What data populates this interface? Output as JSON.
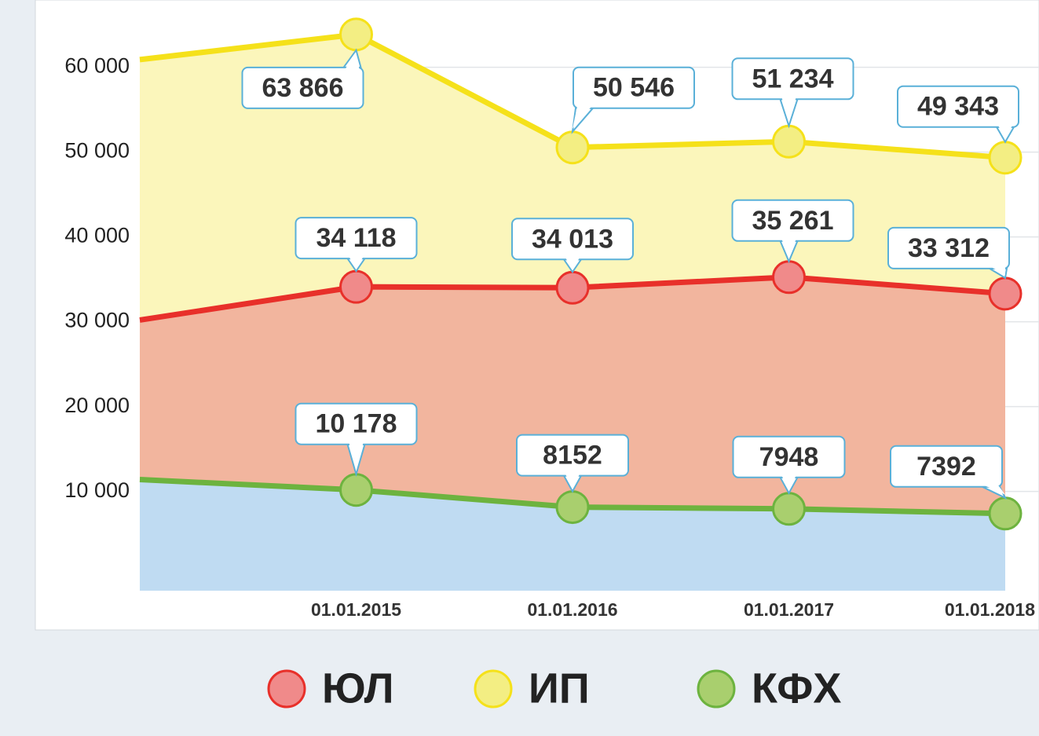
{
  "chart_data": {
    "type": "area",
    "categories": [
      null,
      "01.01.2015",
      "01.01.2016",
      "01.01.2017",
      "01.01.2018"
    ],
    "series": [
      {
        "name": "ЮЛ",
        "color": "#e8302a",
        "fill": "#f2b59e",
        "marker": "#f08a8a",
        "values": [
          30200,
          34118,
          34013,
          35261,
          33312
        ],
        "value_labels": [
          null,
          "34 118",
          "34 013",
          "35 261",
          "33 312"
        ]
      },
      {
        "name": "ИП",
        "color": "#f5e11a",
        "fill": "#fbf6bb",
        "marker": "#f3ee83",
        "values": [
          60900,
          63866,
          50546,
          51234,
          49343
        ],
        "value_labels": [
          null,
          "63 866",
          "50 546",
          "51 234",
          "49 343"
        ]
      },
      {
        "name": "КФХ",
        "color": "#6db33f",
        "fill": "#bfdbf2",
        "marker": "#a9cf6e",
        "values": [
          11400,
          10178,
          8152,
          7948,
          7392
        ],
        "value_labels": [
          null,
          "10 178",
          "8152",
          "7948",
          "7392"
        ]
      }
    ],
    "ylim": [
      -1700,
      67000
    ],
    "yticks": [
      {
        "value": 10000,
        "label": "10 000"
      },
      {
        "value": 20000,
        "label": "20 000"
      },
      {
        "value": 30000,
        "label": "30 000"
      },
      {
        "value": 40000,
        "label": "40 000"
      },
      {
        "value": 50000,
        "label": "50 000"
      },
      {
        "value": 60000,
        "label": "60 000"
      }
    ],
    "grid": true
  }
}
